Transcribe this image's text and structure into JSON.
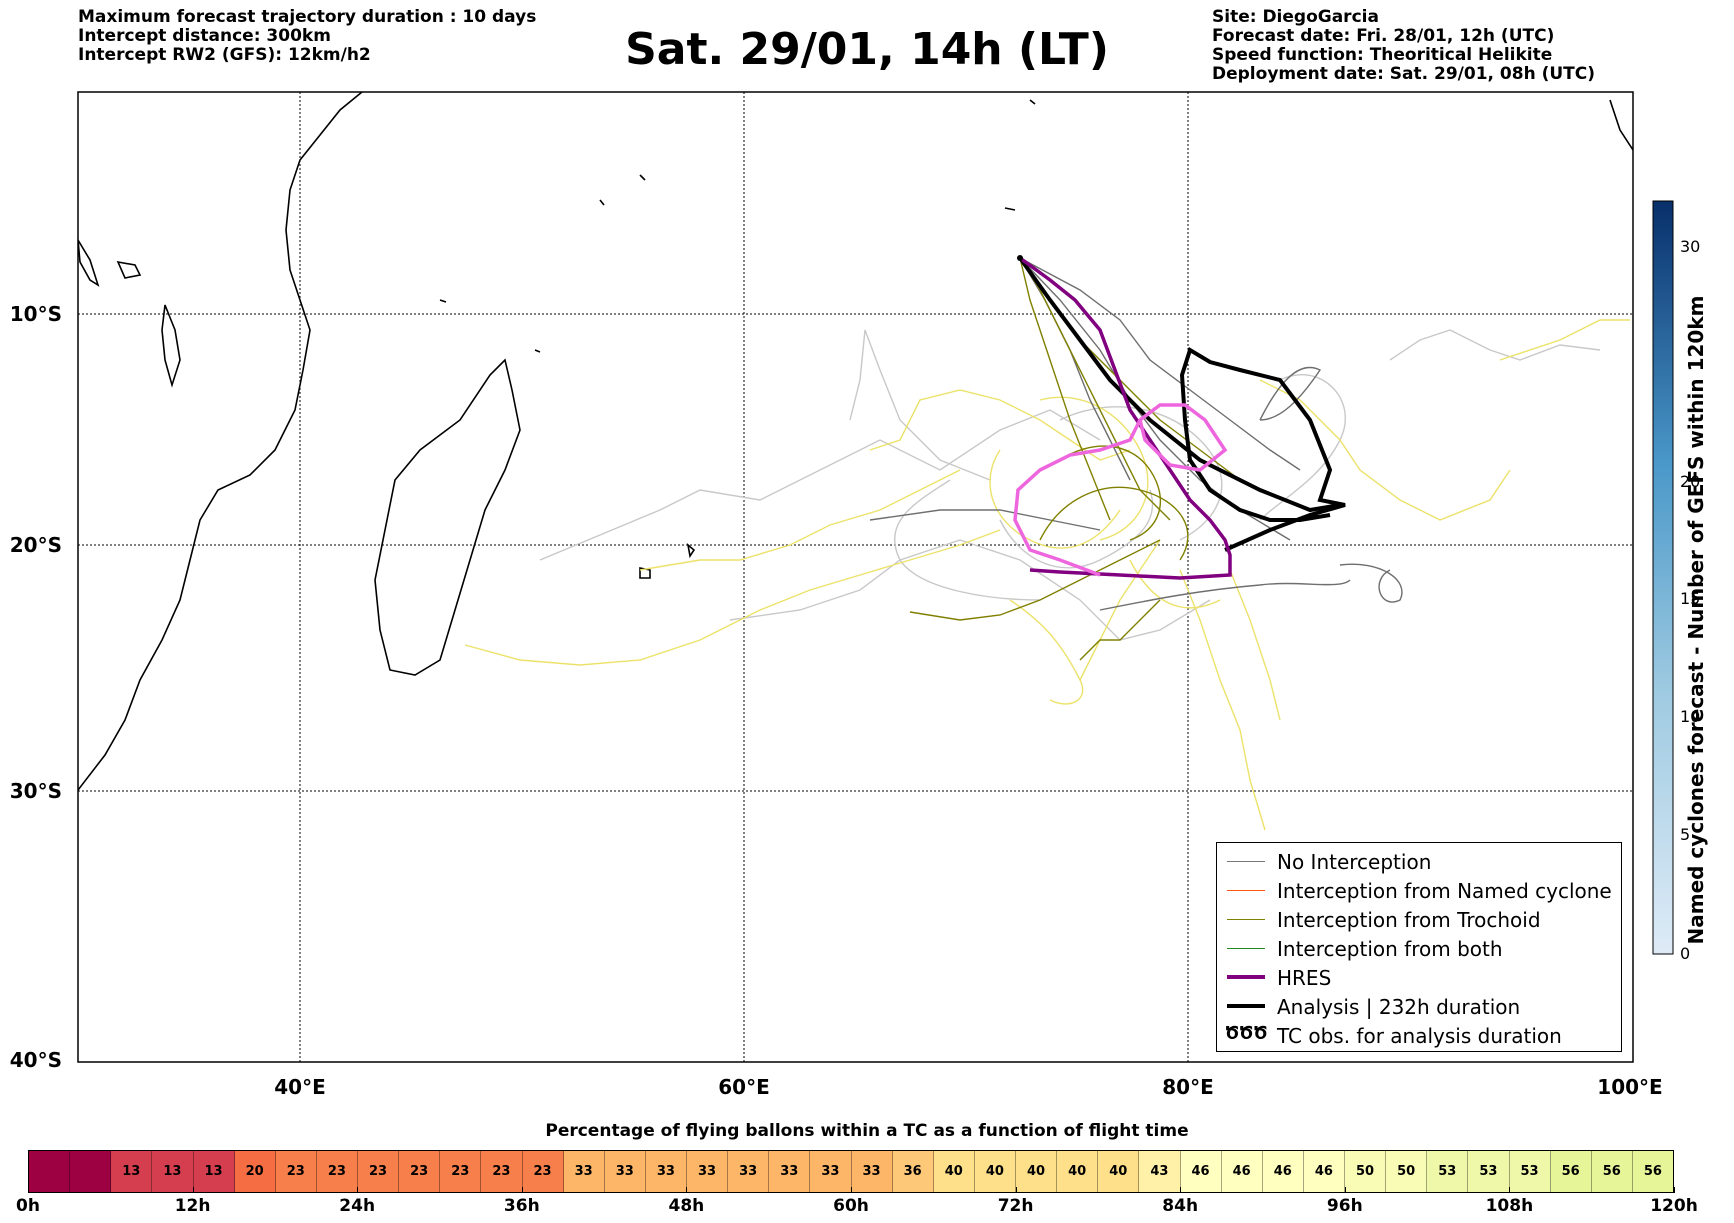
{
  "header_left": [
    "Maximum forecast trajectory duration : 10 days",
    "Intercept distance: 300km",
    "Intercept RW2 (GFS):  12km/h2"
  ],
  "header_right": [
    "Site: DiegoGarcia",
    "Forecast date: Fri. 28/01, 12h (UTC)",
    "Speed function: Theoritical Helikite",
    "Deployment date: Sat. 29/01, 08h (UTC)"
  ],
  "title": "Sat. 29/01, 14h (LT)",
  "map": {
    "lon_range": [
      30,
      100
    ],
    "lat_range": [
      -40,
      0
    ],
    "lon_ticks": [
      "40°E",
      "60°E",
      "80°E",
      "100°E"
    ],
    "lat_ticks": [
      "10°S",
      "20°S",
      "30°S",
      "40°S"
    ],
    "colors": {
      "no_interception": "#777777",
      "named": "#ff5511",
      "trochoid": "#808000",
      "both": "#228b22",
      "hres": "#800080",
      "analysis": "#000000",
      "ensemble_light": "#cccccc",
      "ensemble_yellow": "#eee56a",
      "pink": "#ee66dd"
    }
  },
  "legend": [
    {
      "label": "No Interception",
      "style": "gray-line"
    },
    {
      "label": "Interception from Named cyclone",
      "style": "orange-line"
    },
    {
      "label": "Interception from Trochoid",
      "style": "olive-line"
    },
    {
      "label": "Interception from both",
      "style": "green-line"
    },
    {
      "label": "HRES",
      "style": "purple-thick"
    },
    {
      "label": "Analysis | 232h duration",
      "style": "black-thick"
    },
    {
      "label": "TC obs. for analysis duration",
      "style": "tc-symbols",
      "symbol": "ԾԾԾ"
    }
  ],
  "colorbar": {
    "label": "Named cyclones forecast - Number of GEFS within 120km",
    "ticks": [
      "0",
      "5",
      "10",
      "15",
      "20",
      "30"
    ],
    "range": [
      0,
      32
    ]
  },
  "bottom": {
    "title": "Percentage of flying ballons within a TC as a function of flight time",
    "values": [
      "",
      "",
      "13",
      "13",
      "13",
      "20",
      "23",
      "23",
      "23",
      "23",
      "23",
      "23",
      "23",
      "33",
      "33",
      "33",
      "33",
      "33",
      "33",
      "33",
      "33",
      "36",
      "40",
      "40",
      "40",
      "40",
      "40",
      "43",
      "46",
      "46",
      "46",
      "46",
      "50",
      "50",
      "53",
      "53",
      "53",
      "56",
      "56",
      "56"
    ],
    "colors": [
      "#9e0142",
      "#9e0142",
      "#d53e4f",
      "#d53e4f",
      "#d53e4f",
      "#f46d43",
      "#f67f4b",
      "#f67f4b",
      "#f67f4b",
      "#f67f4b",
      "#f67f4b",
      "#f67f4b",
      "#f67f4b",
      "#fdb567",
      "#fdb567",
      "#fdb567",
      "#fdb567",
      "#fdb567",
      "#fdb567",
      "#fdb567",
      "#fdb567",
      "#fdc877",
      "#fee08b",
      "#fee08b",
      "#fee08b",
      "#fee08b",
      "#fee08b",
      "#fff2a8",
      "#ffffbf",
      "#ffffbf",
      "#ffffbf",
      "#ffffbf",
      "#f8fcb4",
      "#f8fcb4",
      "#eef8a8",
      "#eef8a8",
      "#eef8a8",
      "#e6f598",
      "#e6f598",
      "#e6f598"
    ],
    "time_ticks": [
      "0h",
      "12h",
      "24h",
      "36h",
      "48h",
      "60h",
      "72h",
      "84h",
      "96h",
      "108h",
      "120h"
    ]
  }
}
